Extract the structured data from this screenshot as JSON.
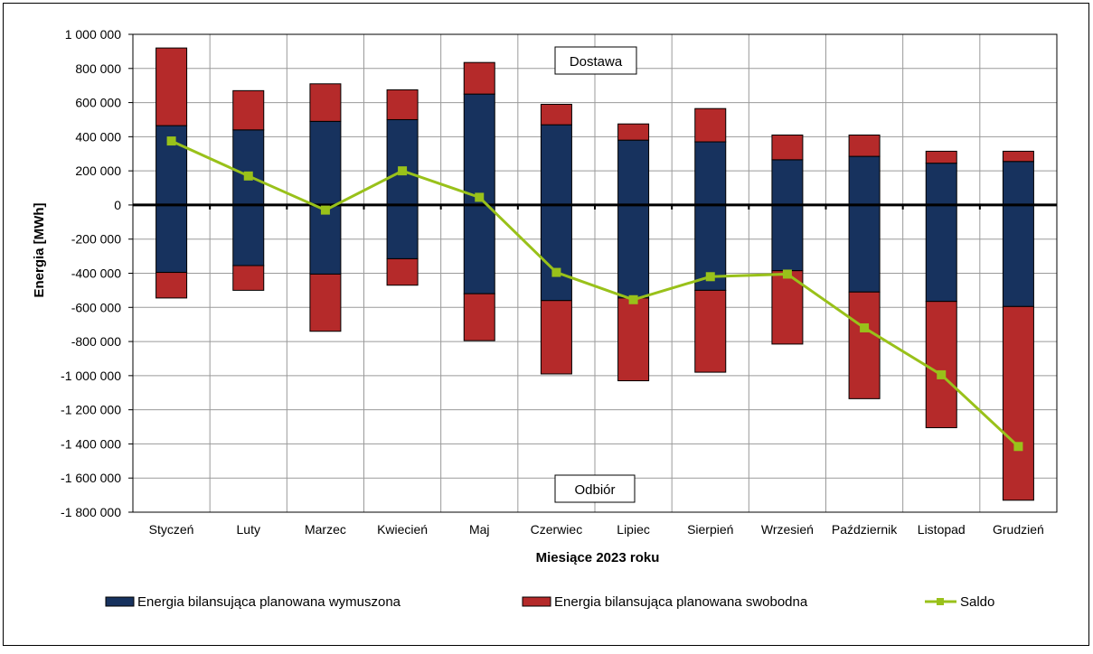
{
  "chart_data": {
    "type": "bar",
    "stacked": true,
    "title": "",
    "xlabel": "Miesiące  2023 roku",
    "ylabel": "Energia [MWh]",
    "ylim": [
      -1800000,
      1000000
    ],
    "ytick_step": 200000,
    "yticks": [
      "1 000 000",
      "800 000",
      "600 000",
      "400 000",
      "200 000",
      "0",
      "-200 000",
      "-400 000",
      "-600 000",
      "-800 000",
      "-1 000 000",
      "-1 200 000",
      "-1 400 000",
      "-1 600 000",
      "-1 800 000"
    ],
    "grid": true,
    "legend_position": "bottom",
    "categories": [
      "Styczeń",
      "Luty",
      "Marzec",
      "Kwiecień",
      "Maj",
      "Czerwiec",
      "Lipiec",
      "Sierpień",
      "Wrzesień",
      "Październik",
      "Listopad",
      "Grudzień"
    ],
    "series": [
      {
        "name": "Energia bilansująca planowana wymuszona",
        "color": "#17325e",
        "supply": [
          465000,
          440000,
          490000,
          500000,
          650000,
          470000,
          380000,
          370000,
          265000,
          285000,
          245000,
          255000
        ],
        "offtake": [
          -395000,
          -355000,
          -405000,
          -315000,
          -520000,
          -560000,
          -545000,
          -500000,
          -385000,
          -510000,
          -565000,
          -595000
        ]
      },
      {
        "name": "Energia bilansująca planowana swobodna",
        "color": "#b52a2a",
        "supply": [
          455000,
          230000,
          220000,
          175000,
          185000,
          120000,
          95000,
          195000,
          145000,
          125000,
          70000,
          60000
        ],
        "offtake": [
          -150000,
          -145000,
          -335000,
          -155000,
          -275000,
          -430000,
          -485000,
          -480000,
          -430000,
          -625000,
          -740000,
          -1135000
        ]
      },
      {
        "name": "Saldo",
        "type": "line",
        "color": "#99c11a",
        "values": [
          375000,
          170000,
          -30000,
          200000,
          45000,
          -395000,
          -555000,
          -420000,
          -405000,
          -720000,
          -995000,
          -1415000
        ]
      }
    ],
    "annotations": [
      "Dostawa",
      "Odbiór"
    ]
  }
}
